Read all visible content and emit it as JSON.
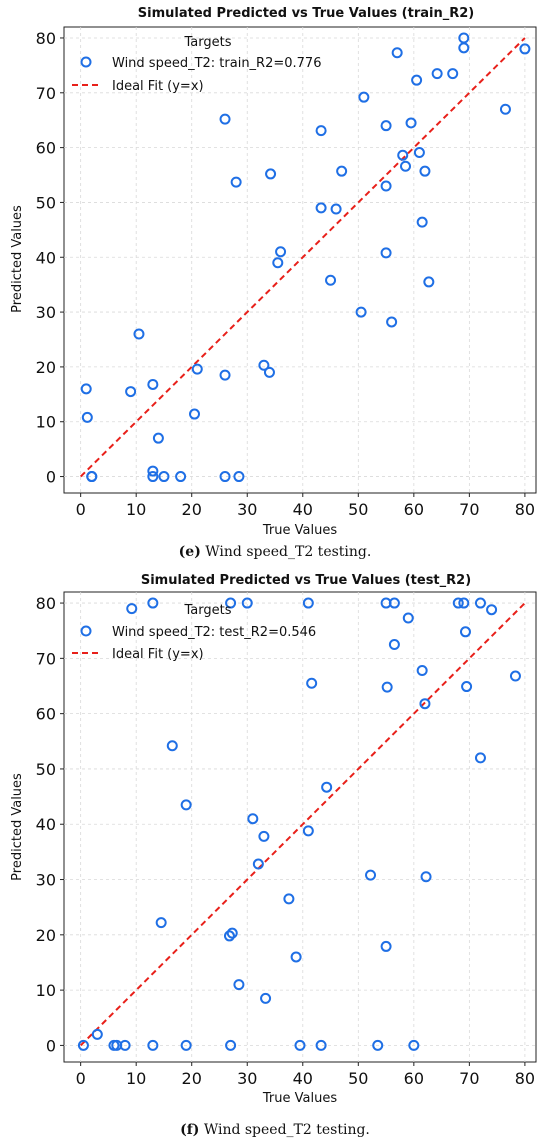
{
  "colors": {
    "points": "#1f6fe5",
    "fit_line": "#e8201a"
  },
  "chart_data": [
    {
      "type": "scatter",
      "title": "Simulated Predicted vs True Values (train_R2)",
      "xlabel": "True Values",
      "ylabel": "Predicted Values",
      "xlim": [
        -3,
        82
      ],
      "ylim": [
        -3,
        82
      ],
      "xticks": [
        0,
        10,
        20,
        30,
        40,
        50,
        60,
        70,
        80
      ],
      "yticks": [
        0,
        10,
        20,
        30,
        40,
        50,
        60,
        70,
        80
      ],
      "grid": true,
      "legend_title": "Targets",
      "legend_position": "top-left",
      "caption_label": "(e)",
      "caption_text": " Wind speed_T2 testing.",
      "series": [
        {
          "name": "Wind speed_T2: train_R2=0.776",
          "marker": "circle-open",
          "points": [
            [
              2,
              0
            ],
            [
              2,
              0
            ],
            [
              13,
              0
            ],
            [
              15,
              0
            ],
            [
              18,
              0
            ],
            [
              26,
              0
            ],
            [
              28.5,
              0
            ],
            [
              13,
              1
            ],
            [
              1.2,
              10.8
            ],
            [
              1,
              16
            ],
            [
              14,
              7
            ],
            [
              20.5,
              11.4
            ],
            [
              9,
              15.5
            ],
            [
              13,
              16.8
            ],
            [
              10.5,
              26
            ],
            [
              21,
              19.6
            ],
            [
              26,
              18.5
            ],
            [
              33,
              20.3
            ],
            [
              34,
              19
            ],
            [
              26,
              65.2
            ],
            [
              28,
              53.7
            ],
            [
              34.2,
              55.2
            ],
            [
              35.5,
              39
            ],
            [
              36,
              41
            ],
            [
              43.3,
              63.1
            ],
            [
              43.3,
              49
            ],
            [
              46,
              48.8
            ],
            [
              47,
              55.7
            ],
            [
              45,
              35.8
            ],
            [
              50.5,
              30
            ],
            [
              51,
              69.2
            ],
            [
              55,
              64
            ],
            [
              55,
              53
            ],
            [
              55,
              40.8
            ],
            [
              56,
              28.2
            ],
            [
              57,
              77.3
            ],
            [
              58,
              58.6
            ],
            [
              58.5,
              56.6
            ],
            [
              59.5,
              64.5
            ],
            [
              60.5,
              72.3
            ],
            [
              61,
              59.1
            ],
            [
              61.5,
              46.4
            ],
            [
              62,
              55.7
            ],
            [
              62.7,
              35.5
            ],
            [
              64.2,
              73.5
            ],
            [
              67,
              73.5
            ],
            [
              69,
              80
            ],
            [
              69,
              78.2
            ],
            [
              76.5,
              67
            ],
            [
              80,
              78
            ]
          ]
        },
        {
          "name": "Ideal Fit (y=x)",
          "line": [
            [
              0,
              0
            ],
            [
              80,
              80
            ]
          ]
        }
      ]
    },
    {
      "type": "scatter",
      "title": "Simulated Predicted vs True Values (test_R2)",
      "xlabel": "True Values",
      "ylabel": "Predicted Values",
      "xlim": [
        -3,
        82
      ],
      "ylim": [
        -3,
        82
      ],
      "xticks": [
        0,
        10,
        20,
        30,
        40,
        50,
        60,
        70,
        80
      ],
      "yticks": [
        0,
        10,
        20,
        30,
        40,
        50,
        60,
        70,
        80
      ],
      "grid": true,
      "legend_title": "Targets",
      "legend_position": "top-left",
      "caption_label": "(f)",
      "caption_text": " Wind speed_T2 testing.",
      "series": [
        {
          "name": "Wind speed_T2: test_R2=0.546",
          "marker": "circle-open",
          "points": [
            [
              0.5,
              0
            ],
            [
              6,
              0
            ],
            [
              6.5,
              0
            ],
            [
              8,
              0
            ],
            [
              13,
              0
            ],
            [
              19,
              0
            ],
            [
              27,
              0
            ],
            [
              39.5,
              0
            ],
            [
              43.3,
              0
            ],
            [
              53.5,
              0
            ],
            [
              60,
              0
            ],
            [
              3,
              2
            ],
            [
              9.2,
              79
            ],
            [
              13,
              80
            ],
            [
              27,
              80
            ],
            [
              30,
              80
            ],
            [
              41,
              80
            ],
            [
              55,
              80
            ],
            [
              56.5,
              80
            ],
            [
              68,
              80
            ],
            [
              69,
              80
            ],
            [
              72,
              80
            ],
            [
              14.5,
              22.2
            ],
            [
              16.5,
              54.2
            ],
            [
              19,
              43.5
            ],
            [
              26.8,
              19.8
            ],
            [
              27.3,
              20.3
            ],
            [
              28.5,
              11
            ],
            [
              31,
              41
            ],
            [
              32,
              32.8
            ],
            [
              33,
              37.8
            ],
            [
              33.3,
              8.5
            ],
            [
              37.5,
              26.5
            ],
            [
              38.8,
              16
            ],
            [
              41,
              38.8
            ],
            [
              41.6,
              65.5
            ],
            [
              44.3,
              46.7
            ],
            [
              52.2,
              30.8
            ],
            [
              55,
              17.9
            ],
            [
              55.2,
              64.8
            ],
            [
              56.5,
              72.5
            ],
            [
              59,
              77.3
            ],
            [
              61.5,
              67.8
            ],
            [
              62,
              61.8
            ],
            [
              62.2,
              30.5
            ],
            [
              69.3,
              74.8
            ],
            [
              69.5,
              64.9
            ],
            [
              72,
              52
            ],
            [
              74,
              78.8
            ],
            [
              78.3,
              66.8
            ]
          ]
        },
        {
          "name": "Ideal Fit (y=x)",
          "line": [
            [
              0,
              0
            ],
            [
              80,
              80
            ]
          ]
        }
      ]
    }
  ]
}
